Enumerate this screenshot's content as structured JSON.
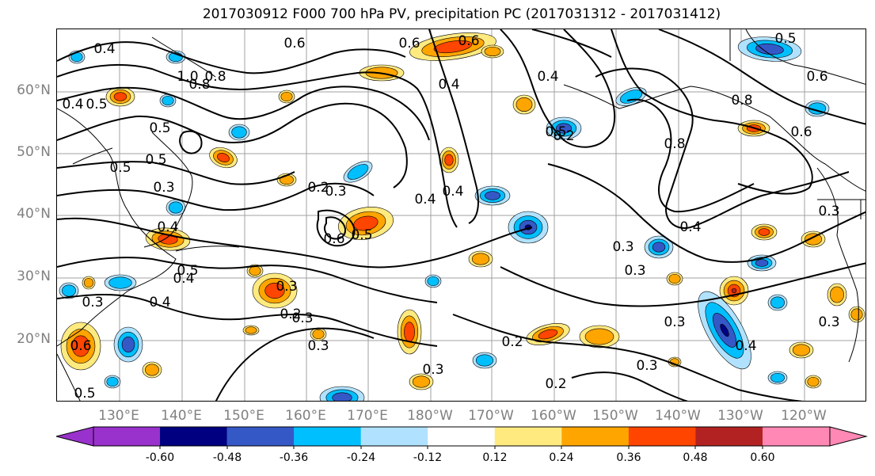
{
  "title": "2017030912 F000 700 hPa PV, precipitation PC (2017031312 - 2017031412)",
  "lat_labels": [
    "60°N",
    "50°N",
    "40°N",
    "30°N",
    "20°N"
  ],
  "lon_labels": [
    "130°E",
    "140°E",
    "150°E",
    "160°E",
    "170°E",
    "180°W",
    "170°W",
    "160°W",
    "150°W",
    "140°W",
    "130°W",
    "120°W"
  ],
  "contour_labels": [
    "0.4",
    "0.6",
    "0.8",
    "1.0",
    "0.5",
    "0.6",
    "0.4",
    "0.6",
    "0.5",
    "0.8",
    "0.4",
    "0.8",
    "0.6",
    "0.5",
    "0.4",
    "0.4",
    "0.5",
    "0.2",
    "0.4",
    "0.8",
    "0.6",
    "0.5",
    "0.3",
    "0.2",
    "0.4",
    "0.5",
    "0.3",
    "0.6",
    "0.5",
    "0.3",
    "0.5",
    "0.3",
    "0.4",
    "0.2",
    "0.3",
    "0.3",
    "0.3",
    "0.4",
    "0.3",
    "0.4",
    "0.3",
    "0.2",
    "0.3",
    "0.3",
    "0.2",
    "0.4",
    "0.3",
    "0.3",
    "0.6",
    "0.5"
  ],
  "colorbar": {
    "colors": [
      "#9932cc",
      "#000080",
      "#3558c7",
      "#00bfff",
      "#b0e2ff",
      "#ffffff",
      "#ffea80",
      "#ffa500",
      "#ff4500",
      "#b22222",
      "#ff88b4"
    ],
    "tick_labels": [
      "-0.60",
      "-0.48",
      "-0.36",
      "-0.24",
      "-0.12",
      "0.12",
      "0.24",
      "0.36",
      "0.48",
      "0.60"
    ]
  },
  "map": {
    "grid_color": "#a0a0a0",
    "contour_color": "#000000"
  }
}
